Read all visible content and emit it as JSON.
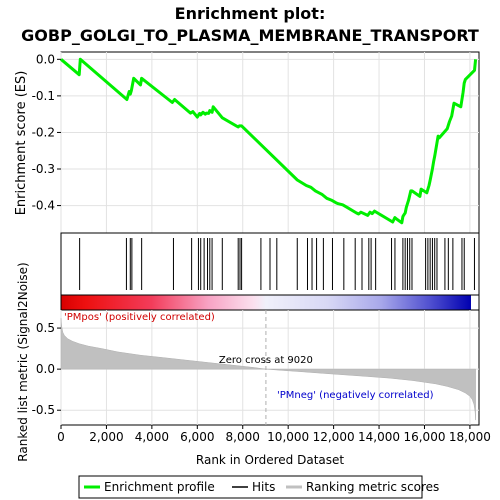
{
  "chart_data": [
    {
      "type": "line",
      "title_line1": "Enrichment plot:",
      "title_line2": "GOBP_GOLGI_TO_PLASMA_MEMBRANE_TRANSPORT",
      "ylabel": "Enrichment score (ES)",
      "ylim": [
        -0.475,
        0.02
      ],
      "y_ticks": [
        0.0,
        -0.1,
        -0.2,
        -0.3,
        -0.4
      ],
      "y_tick_labels": [
        "0.0",
        "-0.1",
        "-0.2",
        "-0.3",
        "-0.4"
      ],
      "xlim": [
        0,
        18400
      ],
      "grid": true,
      "series": [
        {
          "name": "Enrichment profile",
          "color": "#00ee00",
          "x": [
            0,
            800,
            850,
            2900,
            3000,
            3050,
            3100,
            3200,
            3500,
            3550,
            4900,
            5000,
            5700,
            5800,
            6000,
            6100,
            6150,
            6250,
            6350,
            6400,
            6500,
            6550,
            6650,
            6700,
            7100,
            7800,
            7850,
            7950,
            10400,
            10800,
            11000,
            11200,
            11500,
            11700,
            11900,
            12100,
            12200,
            12400,
            12600,
            13000,
            13100,
            13200,
            13500,
            13600,
            13700,
            13800,
            14600,
            14700,
            14800,
            15000,
            15050,
            15100,
            15150,
            15200,
            15300,
            15400,
            15450,
            15800,
            15850,
            16100,
            16200,
            16250,
            16300,
            16350,
            16400,
            16450,
            16600,
            16650,
            17000,
            17100,
            17200,
            17300,
            17600,
            17700,
            17750,
            17800,
            18200,
            18250
          ],
          "y": [
            0.0,
            -0.042,
            0.0,
            -0.11,
            -0.088,
            -0.095,
            -0.085,
            -0.052,
            -0.07,
            -0.052,
            -0.118,
            -0.11,
            -0.147,
            -0.143,
            -0.158,
            -0.148,
            -0.152,
            -0.145,
            -0.15,
            -0.147,
            -0.148,
            -0.14,
            -0.145,
            -0.13,
            -0.16,
            -0.185,
            -0.182,
            -0.182,
            -0.33,
            -0.345,
            -0.35,
            -0.36,
            -0.37,
            -0.38,
            -0.385,
            -0.392,
            -0.395,
            -0.398,
            -0.405,
            -0.42,
            -0.423,
            -0.418,
            -0.427,
            -0.418,
            -0.422,
            -0.415,
            -0.445,
            -0.433,
            -0.438,
            -0.447,
            -0.43,
            -0.425,
            -0.42,
            -0.405,
            -0.385,
            -0.36,
            -0.36,
            -0.375,
            -0.355,
            -0.365,
            -0.345,
            -0.33,
            -0.315,
            -0.3,
            -0.28,
            -0.265,
            -0.21,
            -0.215,
            -0.19,
            -0.17,
            -0.155,
            -0.12,
            -0.13,
            -0.09,
            -0.065,
            -0.055,
            -0.03,
            0.0
          ]
        }
      ]
    },
    {
      "type": "hits",
      "legend_label": "Hits",
      "hit_positions": [
        820,
        2880,
        3050,
        3120,
        3550,
        4950,
        5750,
        6050,
        6150,
        6300,
        6450,
        6550,
        6650,
        7100,
        7800,
        7880,
        7950,
        8800,
        9200,
        9500,
        10400,
        10850,
        11050,
        11250,
        11550,
        11950,
        12450,
        12950,
        13250,
        13550,
        13650,
        13850,
        14550,
        14700,
        15050,
        15150,
        15250,
        15350,
        15450,
        16050,
        16150,
        16250,
        16350,
        16450,
        16550,
        16900,
        17050,
        17250,
        17650,
        17750,
        18200
      ]
    },
    {
      "type": "heatmap",
      "description": "ranked gene list color band, red (positive) to blue (negative)"
    },
    {
      "type": "area",
      "legend_label": "Ranking metric scores",
      "ylabel": "Ranked list metric (Signal2Noise)",
      "xlabel": "Rank in Ordered Dataset",
      "ylim": [
        -0.68,
        0.72
      ],
      "y_ticks": [
        0.5,
        0.0,
        -0.5
      ],
      "y_tick_labels": [
        "0.5",
        "0.0",
        "-0.5"
      ],
      "x_ticks": [
        0,
        2000,
        4000,
        6000,
        8000,
        10000,
        12000,
        14000,
        16000,
        18000
      ],
      "x_tick_labels": [
        "0",
        "2,000",
        "4,000",
        "6,000",
        "8,000",
        "10,000",
        "12,000",
        "14,000",
        "16,000",
        "18,000"
      ],
      "xlim": [
        0,
        18400
      ],
      "n_genes": 18250,
      "zero_cross": 9020,
      "zero_cross_label": "Zero cross at 9020",
      "pos_label": "'PMpos' (positively correlated)",
      "neg_label": "'PMneg' (negatively correlated)",
      "fill_color": "#c0c0c0",
      "profile_x": [
        0,
        30,
        80,
        150,
        300,
        500,
        800,
        1200,
        1800,
        2500,
        3500,
        4500,
        5500,
        6500,
        7500,
        8500,
        9020,
        9500,
        10500,
        11500,
        12500,
        13500,
        14500,
        15500,
        16500,
        17000,
        17500,
        17800,
        18000,
        18100,
        18180,
        18230,
        18250
      ],
      "profile_y": [
        0.62,
        0.52,
        0.45,
        0.41,
        0.37,
        0.34,
        0.31,
        0.28,
        0.25,
        0.21,
        0.17,
        0.14,
        0.11,
        0.08,
        0.05,
        0.02,
        0.0,
        -0.01,
        -0.03,
        -0.05,
        -0.07,
        -0.09,
        -0.11,
        -0.14,
        -0.18,
        -0.21,
        -0.25,
        -0.29,
        -0.33,
        -0.37,
        -0.43,
        -0.52,
        -0.62
      ]
    }
  ],
  "legend": {
    "items": [
      {
        "label": "Enrichment profile",
        "color": "#00ee00"
      },
      {
        "label": "Hits",
        "color": "#000000"
      },
      {
        "label": "Ranking metric scores",
        "color": "#c0c0c0"
      }
    ]
  }
}
